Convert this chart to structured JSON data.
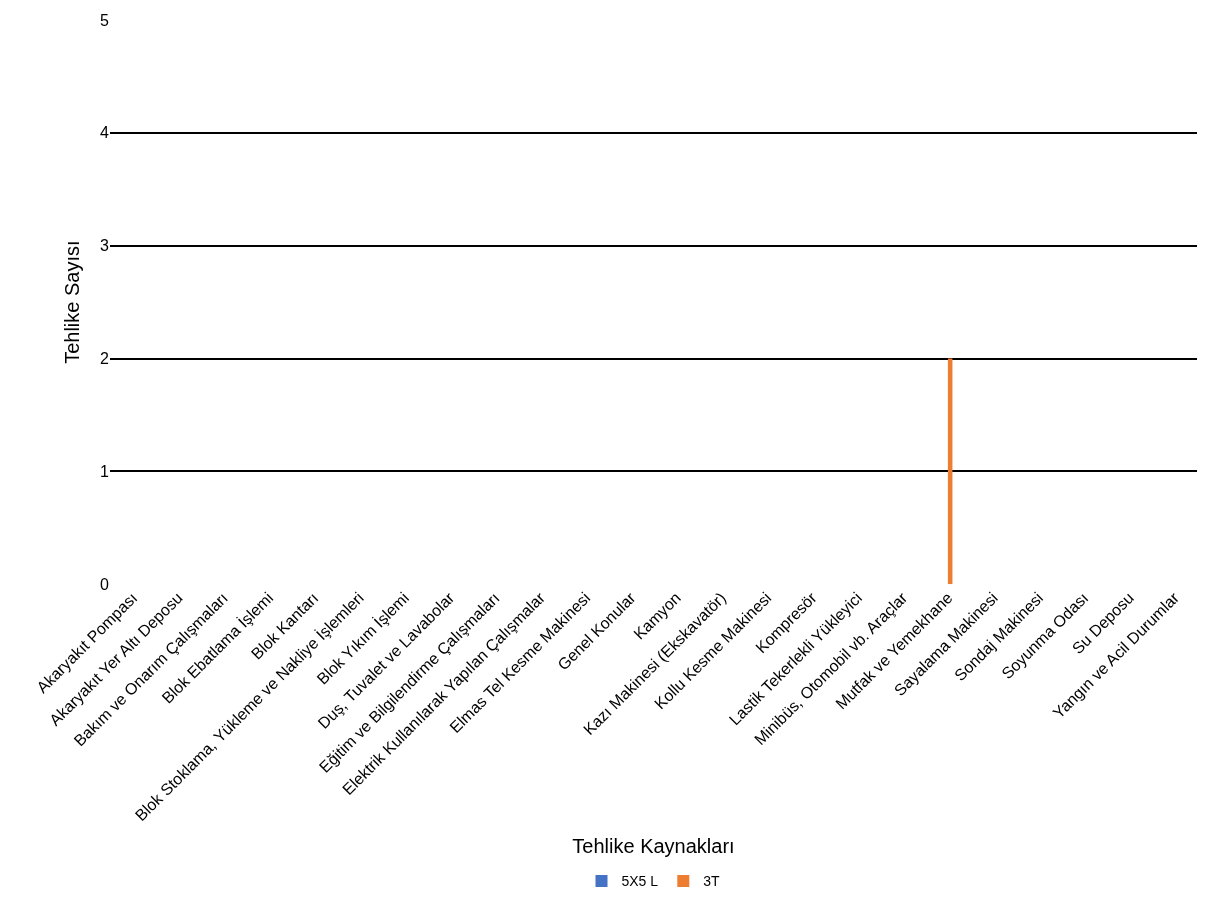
{
  "chart_data": {
    "type": "bar",
    "xlabel": "Tehlike Kaynakları",
    "ylabel": "Tehlike Sayısı",
    "categories": [
      "Akaryakıt Pompası",
      "Akaryakıt Yer Altı Deposu",
      "Bakım ve Onarım Çalışmaları",
      "Blok Ebatlama İşlemi",
      "Blok Kantarı",
      "Blok Stoklama, Yükleme ve Nakliye İşlemleri",
      "Blok Yıkım İşlemi",
      "Duş, Tuvalet ve Lavabolar",
      "Eğitim ve Bilgilendirme Çalışmaları",
      "Elektrik Kullanılarak Yapılan Çalışmalar",
      "Elmas Tel Kesme Makinesi",
      "Genel Konular",
      "Kamyon",
      "Kazı Makinesi (Ekskavatör)",
      "Kollu Kesme Makinesi",
      "Kompresör",
      "Lastik Tekerlekli Yükleyici",
      "Minibüs, Otomobil vb. Araçlar",
      "Mutfak ve Yemekhane",
      "Sayalama Makinesi",
      "Sondaj Makinesi",
      "Soyunma Odası",
      "Su Deposu",
      "Yangın ve Acil Durumlar"
    ],
    "series": [
      {
        "name": "5X5 L",
        "color": "#4472c4",
        "values": [
          0,
          0,
          0,
          0,
          0,
          0,
          0,
          0,
          0,
          0,
          0,
          0,
          0,
          0,
          0,
          0,
          0,
          0,
          0,
          0,
          0,
          0,
          0,
          0
        ]
      },
      {
        "name": "3T",
        "color": "#ed7d31",
        "values": [
          0,
          0,
          0,
          0,
          0,
          0,
          0,
          0,
          0,
          0,
          0,
          0,
          0,
          0,
          0,
          0,
          0,
          0,
          2,
          0,
          0,
          0,
          0,
          0
        ]
      }
    ],
    "ylim": [
      0,
      5
    ],
    "yticks": [
      0,
      1,
      2,
      3,
      4,
      5
    ],
    "grid": "y",
    "legend": "bottom"
  }
}
